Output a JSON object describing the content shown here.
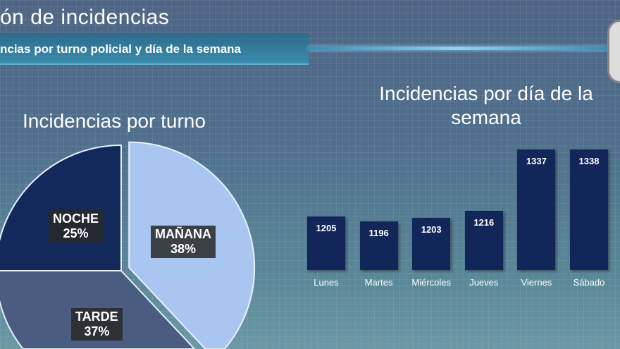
{
  "header": {
    "title": "ón de incidencias",
    "subtitle": "ncias por turno policial y día de la semana"
  },
  "chart_data": [
    {
      "type": "pie",
      "title": "Incidencias por turno",
      "slices": [
        {
          "label": "MAÑANA",
          "value": 38,
          "display": "38%",
          "color": "#a9c6f0"
        },
        {
          "label": "TARDE",
          "value": 37,
          "display": "37%",
          "color": "#4a5d80"
        },
        {
          "label": "NOCHE",
          "value": 25,
          "display": "25%",
          "color": "#13295c"
        }
      ]
    },
    {
      "type": "bar",
      "title": "Incidencias por día de la semana",
      "categories": [
        "Lunes",
        "Martes",
        "Miércoles",
        "Jueves",
        "Viernes",
        "Sábado"
      ],
      "values": [
        1205,
        1196,
        1203,
        1216,
        1337,
        1338
      ],
      "ylim": [
        1100,
        1350
      ],
      "color": "#13265a"
    }
  ]
}
